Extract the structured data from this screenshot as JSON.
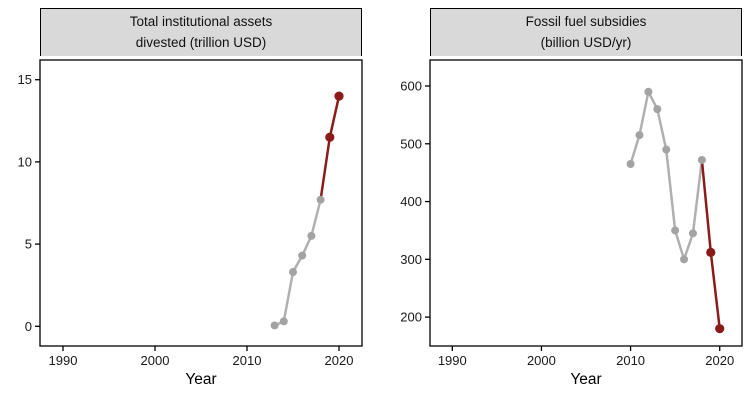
{
  "figure": {
    "xlabel": "Year",
    "colors": {
      "highlight_red": "#8b1a1a",
      "history_gray": "#aaaaaa",
      "line_gray": "#b8b8b8",
      "strip_background": "#d9d9d9",
      "panel_border": "#000000",
      "background": "#ffffff"
    }
  },
  "chart_data": [
    {
      "type": "line",
      "title_lines": [
        "Total institutional assets",
        "divested (trillion USD)"
      ],
      "xlabel": "Year",
      "ylabel": "",
      "x_ticks": [
        1990,
        2000,
        2010,
        2020
      ],
      "y_ticks": [
        0,
        5,
        10,
        15
      ],
      "xlim": [
        1987.5,
        2022.5
      ],
      "ylim": [
        -1.2,
        16.2
      ],
      "grid": false,
      "legend": "none",
      "series": [
        {
          "name": "historical",
          "color": "#b0b0b0",
          "marker_color": "#a3a3a3",
          "marker_radius": 4,
          "line": [
            [
              2013,
              0.05
            ],
            [
              2014,
              0.3
            ],
            [
              2015,
              3.3
            ],
            [
              2016,
              4.3
            ],
            [
              2017,
              5.5
            ],
            [
              2018,
              7.7
            ]
          ],
          "markers": [
            [
              2013,
              0.05
            ],
            [
              2014,
              0.3
            ],
            [
              2015,
              3.3
            ],
            [
              2016,
              4.3
            ],
            [
              2017,
              5.5
            ],
            [
              2018,
              7.7
            ]
          ]
        },
        {
          "name": "recent-highlight",
          "color": "#8b1a1a",
          "marker_color": "#8b1a1a",
          "marker_radius": 4.6,
          "line": [
            [
              2018,
              7.7
            ],
            [
              2019,
              11.5
            ],
            [
              2020,
              14.0
            ]
          ],
          "markers": [
            [
              2019,
              11.5
            ],
            [
              2020,
              14.0
            ]
          ]
        }
      ]
    },
    {
      "type": "line",
      "title_lines": [
        "Fossil fuel subsidies",
        "(billion USD/yr)"
      ],
      "xlabel": "Year",
      "ylabel": "",
      "x_ticks": [
        1990,
        2000,
        2010,
        2020
      ],
      "y_ticks": [
        200,
        300,
        400,
        500,
        600
      ],
      "xlim": [
        1987.5,
        2022.5
      ],
      "ylim": [
        150,
        645
      ],
      "grid": false,
      "legend": "none",
      "series": [
        {
          "name": "historical",
          "color": "#b0b0b0",
          "marker_color": "#a3a3a3",
          "marker_radius": 4,
          "line": [
            [
              2010,
              465
            ],
            [
              2011,
              515
            ],
            [
              2012,
              590
            ],
            [
              2013,
              560
            ],
            [
              2014,
              490
            ],
            [
              2015,
              350
            ],
            [
              2016,
              300
            ],
            [
              2017,
              345
            ],
            [
              2018,
              472
            ]
          ],
          "markers": [
            [
              2010,
              465
            ],
            [
              2011,
              515
            ],
            [
              2012,
              590
            ],
            [
              2013,
              560
            ],
            [
              2014,
              490
            ],
            [
              2015,
              350
            ],
            [
              2016,
              300
            ],
            [
              2017,
              345
            ],
            [
              2018,
              472
            ]
          ]
        },
        {
          "name": "recent-highlight",
          "color": "#8b1a1a",
          "marker_color": "#8b1a1a",
          "marker_radius": 4.6,
          "line": [
            [
              2018,
              472
            ],
            [
              2019,
              312
            ],
            [
              2020,
              180
            ]
          ],
          "markers": [
            [
              2019,
              312
            ],
            [
              2020,
              180
            ]
          ]
        }
      ]
    }
  ]
}
